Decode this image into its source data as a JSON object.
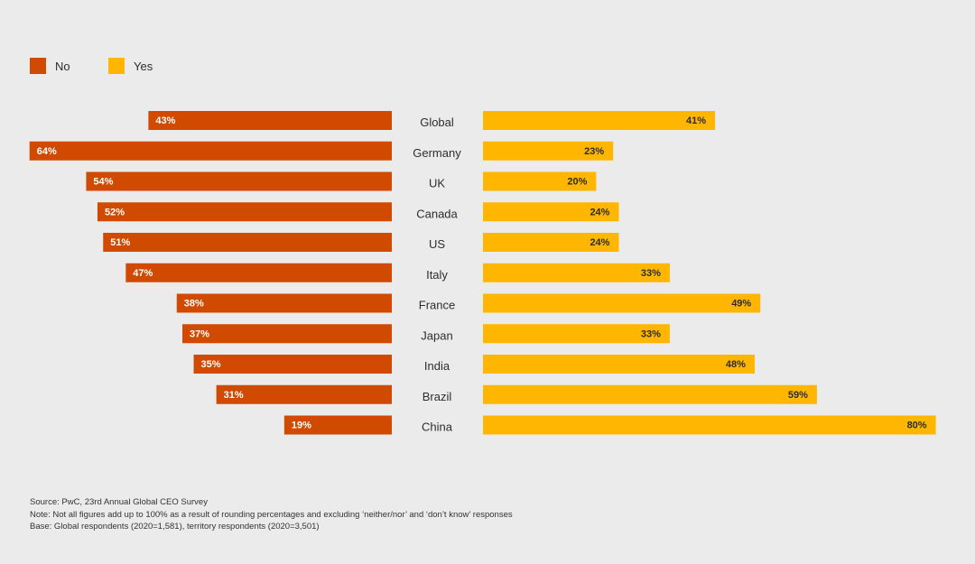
{
  "colors": {
    "no": "#d04a02",
    "yes": "#ffb600",
    "background": "#ebebeb"
  },
  "legend": {
    "no_label": "No",
    "yes_label": "Yes"
  },
  "chart_data": {
    "type": "bar",
    "orientation": "horizontal-diverging",
    "categories": [
      "Global",
      "Germany",
      "UK",
      "Canada",
      "US",
      "Italy",
      "France",
      "Japan",
      "India",
      "Brazil",
      "China"
    ],
    "series": [
      {
        "name": "No",
        "values": [
          43,
          64,
          54,
          52,
          51,
          47,
          38,
          37,
          35,
          31,
          19
        ],
        "labels": [
          "43%",
          "64%",
          "54%",
          "52%",
          "51%",
          "47%",
          "38%",
          "37%",
          "35%",
          "31%",
          "19%"
        ]
      },
      {
        "name": "Yes",
        "values": [
          41,
          23,
          20,
          24,
          24,
          33,
          49,
          33,
          48,
          59,
          80
        ],
        "labels": [
          "41%",
          "23%",
          "20%",
          "24%",
          "24%",
          "33%",
          "49%",
          "33%",
          "48%",
          "59%",
          "80%"
        ]
      }
    ],
    "unit": "%",
    "legend_position": "top-left"
  },
  "notes": {
    "source": "Source: PwC, 23rd Annual Global CEO Survey",
    "note": "Note: Not all figures add up to 100% as a result of rounding percentages and excluding ‘neither/nor’ and ‘don’t know’ responses",
    "base": "Base: Global respondents (2020=1,581), territory respondents (2020=3,501)"
  }
}
